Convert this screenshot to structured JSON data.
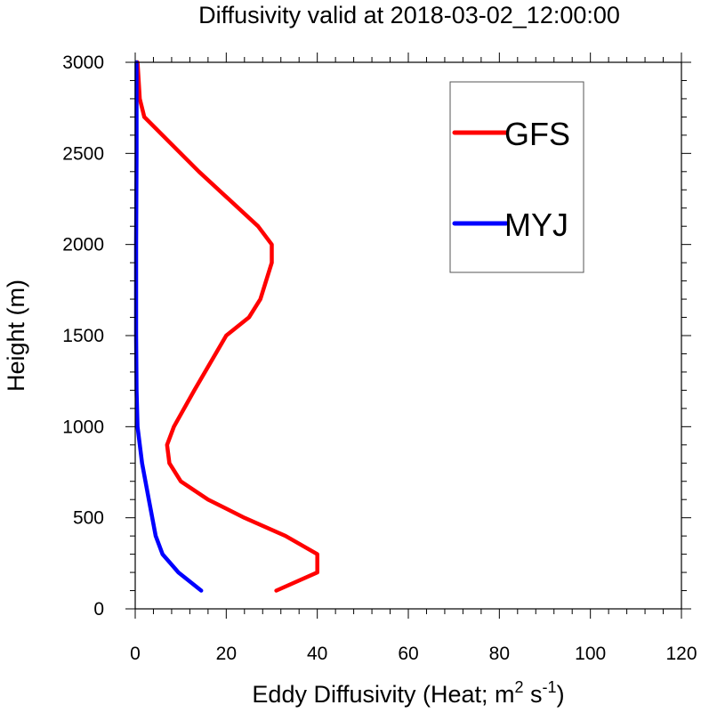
{
  "chart_data": {
    "type": "line",
    "title": "Diffusivity valid at 2018-03-02_12:00:00",
    "xlabel": {
      "prefix": "Eddy Diffusivity (Heat; m",
      "sup1": "2",
      "middle": " s",
      "sup2": "-1",
      "suffix": ")"
    },
    "ylabel": "Height (m)",
    "xlim": [
      0,
      120
    ],
    "ylim": [
      0,
      3000
    ],
    "xticks": [
      0,
      20,
      40,
      60,
      80,
      100,
      120
    ],
    "yticks": [
      0,
      500,
      1000,
      1500,
      2000,
      2500,
      3000
    ],
    "xtick_labels": [
      "0",
      "20",
      "40",
      "60",
      "80",
      "100",
      "120"
    ],
    "ytick_labels": [
      "0",
      "500",
      "1000",
      "1500",
      "2000",
      "2500",
      "3000"
    ],
    "grid": false,
    "legend_position": "top-right",
    "series": [
      {
        "name": "GFS",
        "color": "#ff0000",
        "points": [
          [
            31,
            100
          ],
          [
            40,
            200
          ],
          [
            40,
            300
          ],
          [
            33,
            400
          ],
          [
            24,
            500
          ],
          [
            16,
            600
          ],
          [
            10,
            700
          ],
          [
            7.5,
            800
          ],
          [
            7,
            900
          ],
          [
            8.5,
            1000
          ],
          [
            13,
            1200
          ],
          [
            20,
            1500
          ],
          [
            25,
            1600
          ],
          [
            27.5,
            1700
          ],
          [
            30,
            1900
          ],
          [
            30,
            2000
          ],
          [
            27,
            2100
          ],
          [
            14,
            2400
          ],
          [
            2,
            2700
          ],
          [
            1,
            2800
          ],
          [
            0.5,
            3000
          ]
        ]
      },
      {
        "name": "MYJ",
        "color": "#0000ff",
        "points": [
          [
            14.5,
            100
          ],
          [
            9.5,
            200
          ],
          [
            6,
            300
          ],
          [
            4.5,
            400
          ],
          [
            3,
            600
          ],
          [
            1.5,
            800
          ],
          [
            0.5,
            1000
          ],
          [
            0.3,
            1200
          ],
          [
            0.2,
            1500
          ],
          [
            0.2,
            2000
          ],
          [
            0.3,
            2500
          ],
          [
            0.3,
            3000
          ]
        ]
      }
    ]
  }
}
